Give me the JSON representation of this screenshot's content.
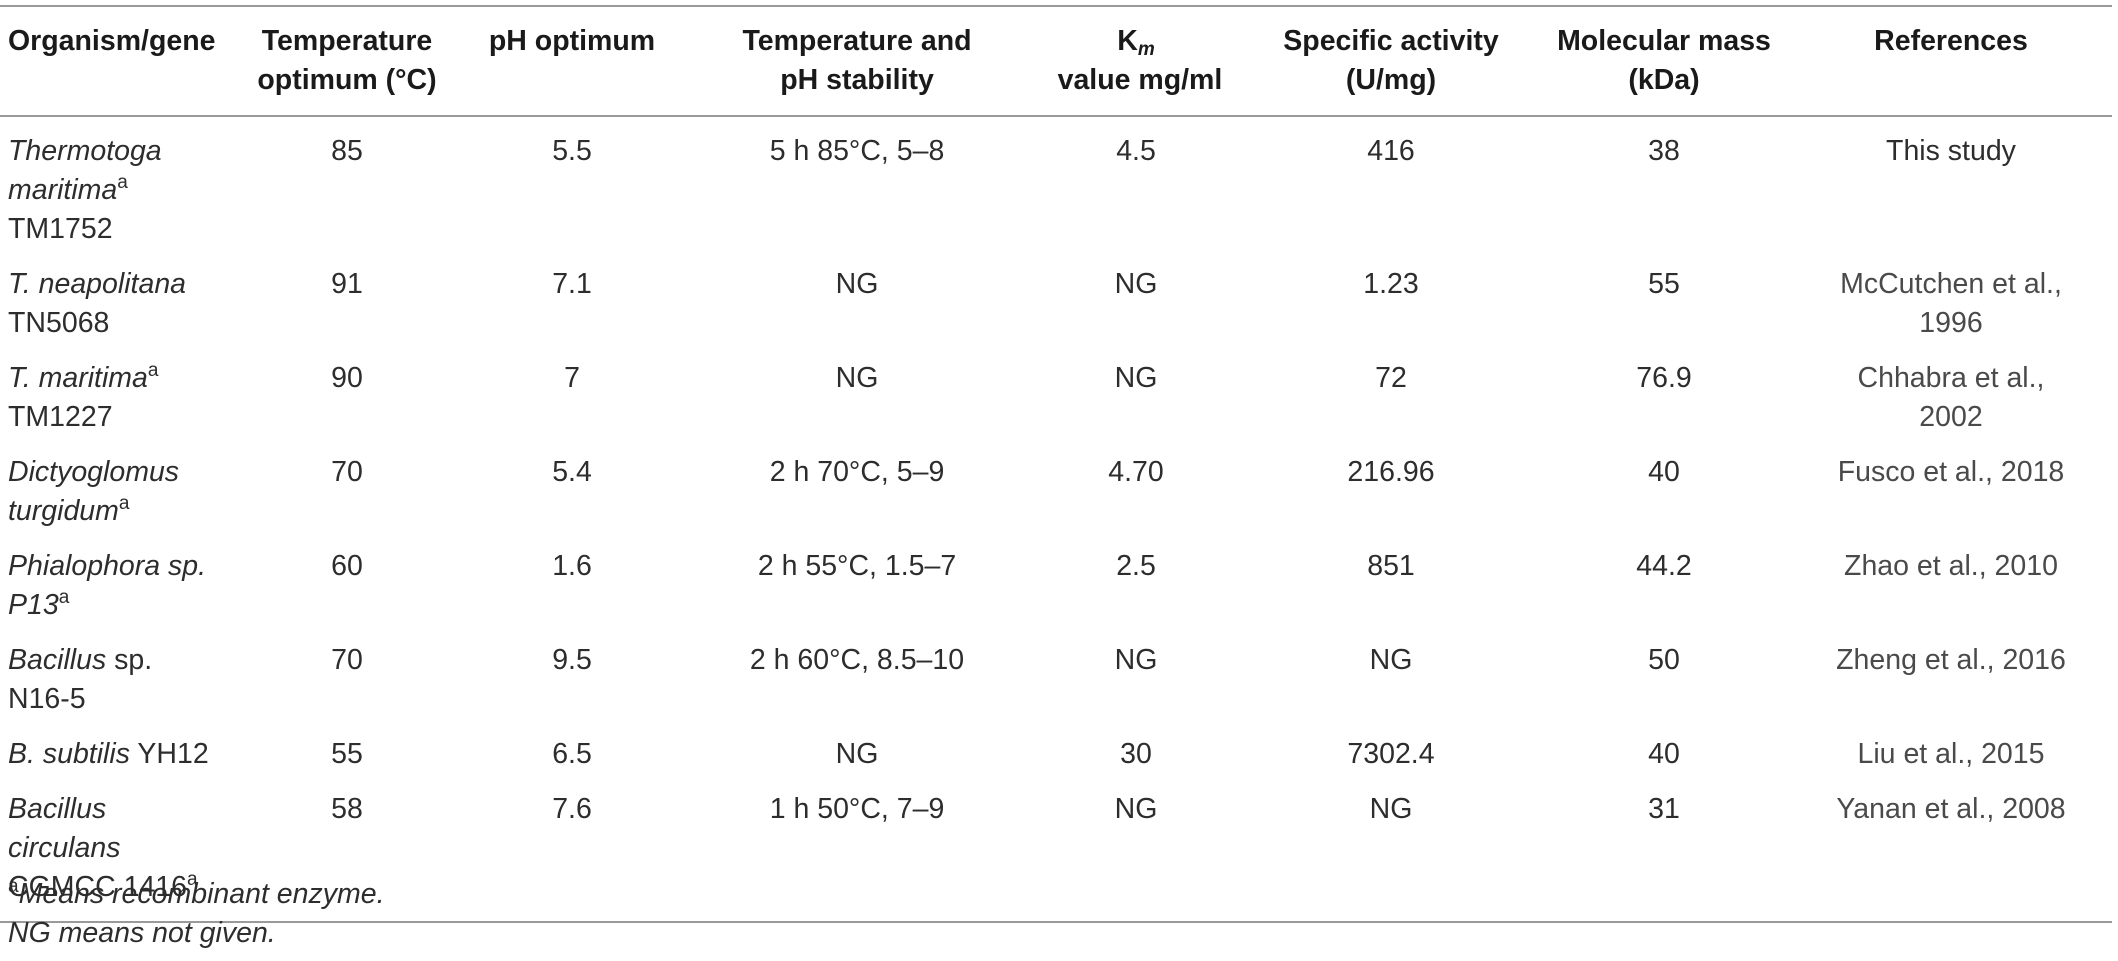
{
  "table": {
    "headers": {
      "organism": "Organism/gene",
      "temp_opt_1": "Temperature",
      "temp_opt_2": "optimum (°C)",
      "ph_opt": "pH optimum",
      "stability_1": "Temperature and",
      "stability_2": "pH stability",
      "km_k": "K",
      "km_sub": "m",
      "km_rest": " value mg/ml",
      "spec_1": "Specific activity",
      "spec_2": "(U/mg)",
      "mass_1": "Molecular mass",
      "mass_2": "(kDa)",
      "refs": "References"
    },
    "rows": [
      {
        "org_a": "Thermotoga",
        "org_b": "maritima",
        "org_b_sup": "a",
        "org_c": "TM1752",
        "temp": "85",
        "ph": "5.5",
        "stab": "5 h 85°C, 5–8",
        "km": "4.5",
        "spec": "416",
        "mass": "38",
        "ref_a": "This study",
        "ref_b": ""
      },
      {
        "org_a": "T. neapolitana",
        "org_c": "TN5068",
        "temp": "91",
        "ph": "7.1",
        "stab": "NG",
        "km": "NG",
        "spec": "1.23",
        "mass": "55",
        "ref_a": "McCutchen et al.,",
        "ref_b": "1996"
      },
      {
        "org_a": "T. maritima",
        "org_a_sup": "a",
        "org_c": "TM1227",
        "temp": "90",
        "ph": "7",
        "stab": "NG",
        "km": "NG",
        "spec": "72",
        "mass": "76.9",
        "ref_a": "Chhabra et al.,",
        "ref_b": "2002"
      },
      {
        "org_a": "Dictyoglomus",
        "org_b": "turgidum",
        "org_b_sup": "a",
        "temp": "70",
        "ph": "5.4",
        "stab": "2 h 70°C, 5–9",
        "km": "4.70",
        "spec": "216.96",
        "mass": "40",
        "ref_a": "Fusco et al., 2018"
      },
      {
        "org_a": "Phialophora sp.",
        "org_b": "P13",
        "org_b_sup": "a",
        "temp": "60",
        "ph": "1.6",
        "stab": "2 h 55°C, 1.5–7",
        "km": "2.5",
        "spec": "851",
        "mass": "44.2",
        "ref_a": "Zhao et al., 2010"
      },
      {
        "org_a": "Bacillus",
        "org_a_rest": " sp.",
        "org_c": "N16-5",
        "temp": "70",
        "ph": "9.5",
        "stab": "2 h 60°C, 8.5–10",
        "km": "NG",
        "spec": "NG",
        "mass": "50",
        "ref_a": "Zheng et al., 2016"
      },
      {
        "org_a": "B. subtilis",
        "org_a_rest": " YH12",
        "temp": "55",
        "ph": "6.5",
        "stab": "NG",
        "km": "30",
        "spec": "7302.4",
        "mass": "40",
        "ref_a": "Liu et al., 2015"
      },
      {
        "org_a": "Bacillus",
        "org_b": "circulans",
        "org_c": "CGMCC 1416",
        "org_c_sup": "a",
        "temp": "58",
        "ph": "7.6",
        "stab": "1 h 50°C, 7–9",
        "km": "NG",
        "spec": "NG",
        "mass": "31",
        "ref_a": "Yanan et al., 2008"
      }
    ]
  },
  "notes": {
    "sup": "a",
    "line1": "Means recombinant enzyme.",
    "line2": "NG means not given."
  }
}
